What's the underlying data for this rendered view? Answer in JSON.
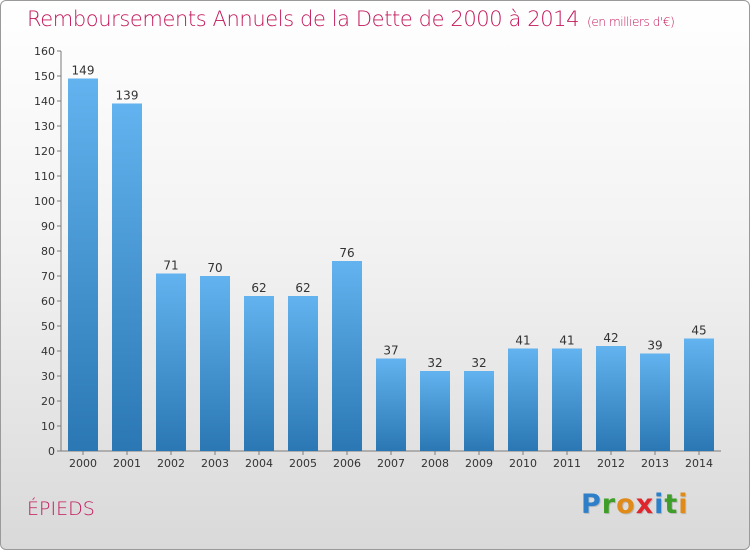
{
  "title": "Remboursements Annuels de la Dette de 2000 à 2014",
  "subtitle": "(en milliers d'€)",
  "commune": "ÉPIEDS",
  "logo": {
    "text": "Proxiti"
  },
  "colors": {
    "bar_top": "#62b3ef",
    "bar_bottom": "#2a77b3",
    "title": "#c2185b"
  },
  "chart_data": {
    "type": "bar",
    "categories": [
      "2000",
      "2001",
      "2002",
      "2003",
      "2004",
      "2005",
      "2006",
      "2007",
      "2008",
      "2009",
      "2010",
      "2011",
      "2012",
      "2013",
      "2014"
    ],
    "values": [
      149,
      139,
      71,
      70,
      62,
      62,
      76,
      37,
      32,
      32,
      41,
      41,
      42,
      39,
      45
    ],
    "y_ticks": [
      0,
      10,
      20,
      30,
      40,
      50,
      60,
      70,
      80,
      90,
      100,
      110,
      120,
      130,
      140,
      150,
      160
    ],
    "ylim": [
      0,
      160
    ],
    "grid": false,
    "data_labels": true
  }
}
